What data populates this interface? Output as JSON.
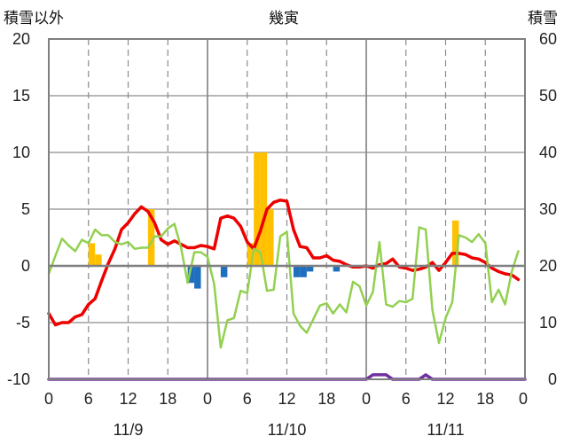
{
  "chart_data": {
    "type": "bar+line",
    "header": {
      "left_label": "積雪以外",
      "center_label": "幾寅",
      "right_label": "積雪"
    },
    "left_axis": {
      "ylim": [
        -10,
        20
      ],
      "ticks": [
        "20",
        "15",
        "10",
        "5",
        "0",
        "-5",
        "-10"
      ]
    },
    "right_axis": {
      "ylim": [
        0,
        60
      ],
      "ticks": [
        "60",
        "50",
        "40",
        "30",
        "20",
        "10",
        "0"
      ]
    },
    "x_axis": {
      "hours_total": 72,
      "tick_labels": [
        "0",
        "6",
        "12",
        "18",
        "0",
        "6",
        "12",
        "18",
        "0",
        "6",
        "12",
        "18",
        "0"
      ],
      "date_labels": [
        "11/9",
        "11/10",
        "11/11"
      ]
    },
    "colors": {
      "temperature": "#ee0000",
      "snow_depth": "#92d050",
      "precipitation": "#ffc000",
      "negative_bars": "#1f6fbf",
      "wind": "#7030a0",
      "grid": "#8c8c8c"
    },
    "series": [
      {
        "key": "temperature",
        "axis": "left",
        "points": [
          [
            0,
            -4.2
          ],
          [
            1,
            -5.2
          ],
          [
            2,
            -5.0
          ],
          [
            3,
            -5.0
          ],
          [
            4,
            -4.5
          ],
          [
            5,
            -4.3
          ],
          [
            6,
            -3.4
          ],
          [
            7,
            -2.9
          ],
          [
            8,
            -1.3
          ],
          [
            9,
            0.2
          ],
          [
            10,
            1.5
          ],
          [
            11,
            3.2
          ],
          [
            12,
            3.8
          ],
          [
            13,
            4.6
          ],
          [
            14,
            5.2
          ],
          [
            15,
            4.8
          ],
          [
            16,
            3.8
          ],
          [
            17,
            2.3
          ],
          [
            18,
            1.9
          ],
          [
            19,
            2.2
          ],
          [
            20,
            1.9
          ],
          [
            21,
            1.6
          ],
          [
            22,
            1.6
          ],
          [
            23,
            1.8
          ],
          [
            24,
            1.7
          ],
          [
            25,
            1.5
          ],
          [
            26,
            4.2
          ],
          [
            27,
            4.4
          ],
          [
            28,
            4.2
          ],
          [
            29,
            3.5
          ],
          [
            30,
            2.1
          ],
          [
            31,
            1.5
          ],
          [
            32,
            3.1
          ],
          [
            33,
            5.0
          ],
          [
            34,
            5.6
          ],
          [
            35,
            5.8
          ],
          [
            36,
            5.7
          ],
          [
            37,
            3.2
          ],
          [
            38,
            1.7
          ],
          [
            39,
            1.6
          ],
          [
            40,
            0.7
          ],
          [
            41,
            0.7
          ],
          [
            42,
            0.9
          ],
          [
            43,
            0.5
          ],
          [
            44,
            0.4
          ],
          [
            45,
            0.1
          ],
          [
            46,
            -0.1
          ],
          [
            47,
            -0.1
          ],
          [
            48,
            0.0
          ],
          [
            49,
            -0.2
          ],
          [
            50,
            0.1
          ],
          [
            51,
            0.2
          ],
          [
            52,
            0.6
          ],
          [
            53,
            -0.1
          ],
          [
            54,
            -0.2
          ],
          [
            55,
            -0.4
          ],
          [
            56,
            -0.3
          ],
          [
            57,
            -0.1
          ],
          [
            58,
            0.3
          ],
          [
            59,
            -0.4
          ],
          [
            60,
            0.3
          ],
          [
            61,
            1.1
          ],
          [
            62,
            1.1
          ],
          [
            63,
            1.0
          ],
          [
            64,
            0.7
          ],
          [
            65,
            0.6
          ],
          [
            66,
            0.3
          ],
          [
            67,
            -0.2
          ],
          [
            68,
            -0.5
          ],
          [
            69,
            -0.7
          ],
          [
            70,
            -0.8
          ],
          [
            71,
            -1.2
          ]
        ]
      },
      {
        "key": "snow_depth",
        "axis": "left",
        "points": [
          [
            0,
            -0.7
          ],
          [
            1,
            0.9
          ],
          [
            2,
            2.4
          ],
          [
            3,
            1.8
          ],
          [
            4,
            1.3
          ],
          [
            5,
            2.3
          ],
          [
            6,
            2.0
          ],
          [
            7,
            3.2
          ],
          [
            8,
            2.7
          ],
          [
            9,
            2.7
          ],
          [
            10,
            2.1
          ],
          [
            11,
            1.9
          ],
          [
            12,
            2.1
          ],
          [
            13,
            1.5
          ],
          [
            14,
            1.6
          ],
          [
            15,
            1.6
          ],
          [
            16,
            2.6
          ],
          [
            17,
            2.6
          ],
          [
            18,
            3.3
          ],
          [
            19,
            3.7
          ],
          [
            20,
            1.6
          ],
          [
            21,
            -1.5
          ],
          [
            22,
            1.2
          ],
          [
            23,
            1.2
          ],
          [
            24,
            0.8
          ],
          [
            25,
            -1.6
          ],
          [
            26,
            -7.2
          ],
          [
            27,
            -4.8
          ],
          [
            28,
            -4.6
          ],
          [
            29,
            -2.2
          ],
          [
            30,
            -2.4
          ],
          [
            31,
            1.5
          ],
          [
            32,
            1.2
          ],
          [
            33,
            -2.2
          ],
          [
            34,
            -2.1
          ],
          [
            35,
            2.6
          ],
          [
            36,
            3.0
          ],
          [
            37,
            -4.2
          ],
          [
            38,
            -5.3
          ],
          [
            39,
            -5.9
          ],
          [
            40,
            -4.7
          ],
          [
            41,
            -3.5
          ],
          [
            42,
            -3.3
          ],
          [
            43,
            -4.2
          ],
          [
            44,
            -3.4
          ],
          [
            45,
            -4.1
          ],
          [
            46,
            -1.4
          ],
          [
            47,
            -1.8
          ],
          [
            48,
            -3.5
          ],
          [
            49,
            -2.3
          ],
          [
            50,
            2.1
          ],
          [
            51,
            -3.4
          ],
          [
            52,
            -3.6
          ],
          [
            53,
            -3.1
          ],
          [
            54,
            -3.2
          ],
          [
            55,
            -2.9
          ],
          [
            56,
            3.4
          ],
          [
            57,
            3.2
          ],
          [
            58,
            -3.9
          ],
          [
            59,
            -6.8
          ],
          [
            60,
            -4.6
          ],
          [
            61,
            -3.2
          ],
          [
            62,
            2.7
          ],
          [
            63,
            2.5
          ],
          [
            64,
            2.1
          ],
          [
            65,
            2.8
          ],
          [
            66,
            2.0
          ],
          [
            67,
            -3.2
          ],
          [
            68,
            -2.1
          ],
          [
            69,
            -3.4
          ],
          [
            70,
            -0.5
          ],
          [
            71,
            1.3
          ]
        ]
      },
      {
        "key": "wind",
        "axis": "left",
        "points": [
          [
            0,
            -10
          ],
          [
            48,
            -10
          ],
          [
            49,
            -9.6
          ],
          [
            51,
            -9.6
          ],
          [
            52,
            -10
          ],
          [
            56,
            -10
          ],
          [
            57,
            -9.6
          ],
          [
            58,
            -10
          ],
          [
            72,
            -10
          ]
        ]
      }
    ],
    "bars_positive": [
      [
        6,
        2
      ],
      [
        7,
        1
      ],
      [
        15,
        5
      ],
      [
        30,
        2
      ],
      [
        31,
        10
      ],
      [
        32,
        10
      ],
      [
        33,
        5
      ],
      [
        61,
        4
      ]
    ],
    "bars_negative": [
      [
        21,
        -1.5
      ],
      [
        22,
        -2.0
      ],
      [
        26,
        -1.0
      ],
      [
        37,
        -1.0
      ],
      [
        38,
        -1.0
      ],
      [
        39,
        -0.5
      ],
      [
        43,
        -0.5
      ]
    ]
  }
}
